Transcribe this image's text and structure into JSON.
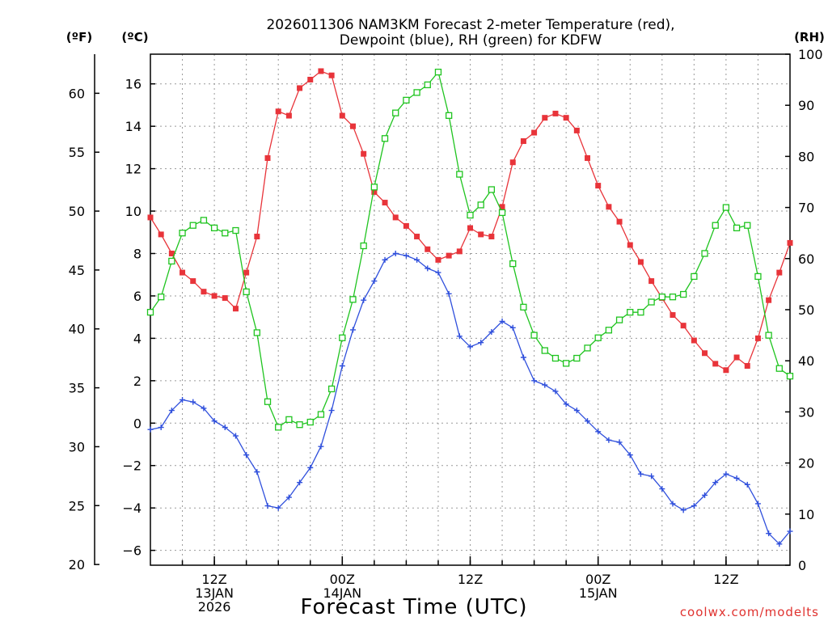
{
  "chart_data": {
    "type": "line",
    "title_line1": "2026011306 NAM3KM Forecast 2-meter Temperature (red),",
    "title_line2": "Dewpoint (blue), RH (green) for KDFW",
    "xlabel": "Forecast Time (UTC)",
    "credit": "coolwx.com/modelts",
    "units": {
      "fahrenheit": "(ºF)",
      "celsius": "(ºC)",
      "rh": "(RH)"
    },
    "x_hours_range": [
      6,
      66
    ],
    "celsius_range": [
      -6.7,
      17.4
    ],
    "rh_range": [
      0,
      100
    ],
    "celsius_ticks": [
      -6,
      -4,
      -2,
      0,
      2,
      4,
      6,
      8,
      10,
      12,
      14,
      16
    ],
    "celsius_tick_labels": [
      "−6",
      "−4",
      "−2",
      "0",
      "2",
      "4",
      "6",
      "8",
      "10",
      "12",
      "14",
      "16"
    ],
    "fahrenheit_ticks": [
      20,
      25,
      30,
      35,
      40,
      45,
      50,
      55,
      60
    ],
    "fahrenheit_tick_labels": [
      "20",
      "25",
      "30",
      "35",
      "40",
      "45",
      "50",
      "55",
      "60"
    ],
    "rh_ticks": [
      0,
      10,
      20,
      30,
      40,
      50,
      60,
      70,
      80,
      90,
      100
    ],
    "rh_tick_labels": [
      "0",
      "10",
      "20",
      "30",
      "40",
      "50",
      "60",
      "70",
      "80",
      "90",
      "100"
    ],
    "x_ticks": [
      {
        "hour": 12,
        "lines": [
          "12Z",
          "13JAN",
          "2026"
        ]
      },
      {
        "hour": 24,
        "lines": [
          "00Z",
          "14JAN"
        ]
      },
      {
        "hour": 36,
        "lines": [
          "12Z"
        ]
      },
      {
        "hour": 48,
        "lines": [
          "00Z",
          "15JAN"
        ]
      },
      {
        "hour": 60,
        "lines": [
          "12Z"
        ]
      }
    ],
    "series": [
      {
        "name": "2-meter Temperature",
        "color": "#e8343a",
        "marker": "filled-square",
        "axis": "celsius",
        "values": [
          9.7,
          8.9,
          8.0,
          7.1,
          6.7,
          6.2,
          6.0,
          5.9,
          5.4,
          7.1,
          8.8,
          12.5,
          14.7,
          14.5,
          15.8,
          16.2,
          16.6,
          16.4,
          14.5,
          14.0,
          12.7,
          10.9,
          10.4,
          9.7,
          9.3,
          8.8,
          8.2,
          7.7,
          7.9,
          8.1,
          9.2,
          8.9,
          8.8,
          10.2,
          12.3,
          13.3,
          13.7,
          14.4,
          14.6,
          14.4,
          13.8,
          12.5,
          11.2,
          10.2,
          9.5,
          8.4,
          7.6,
          6.7,
          5.9,
          5.1,
          4.6,
          3.9,
          3.3,
          2.8,
          2.5,
          3.1,
          2.7,
          4.0,
          5.8,
          7.1,
          8.5
        ]
      },
      {
        "name": "Dewpoint",
        "color": "#2f4fdc",
        "marker": "plus",
        "axis": "celsius",
        "values": [
          -0.3,
          -0.2,
          0.6,
          1.1,
          1.0,
          0.7,
          0.1,
          -0.2,
          -0.6,
          -1.5,
          -2.3,
          -3.9,
          -4.0,
          -3.5,
          -2.8,
          -2.1,
          -1.1,
          0.6,
          2.7,
          4.4,
          5.8,
          6.7,
          7.7,
          8.0,
          7.9,
          7.7,
          7.3,
          7.1,
          6.1,
          4.1,
          3.6,
          3.8,
          4.3,
          4.8,
          4.5,
          3.1,
          2.0,
          1.8,
          1.5,
          0.9,
          0.6,
          0.1,
          -0.4,
          -0.8,
          -0.9,
          -1.5,
          -2.4,
          -2.5,
          -3.1,
          -3.8,
          -4.1,
          -3.9,
          -3.4,
          -2.8,
          -2.4,
          -2.6,
          -2.9,
          -3.8,
          -5.2,
          -5.7,
          -5.1
        ]
      },
      {
        "name": "RH",
        "color": "#1fc41f",
        "marker": "open-square",
        "axis": "rh",
        "values": [
          49.5,
          52.5,
          59.5,
          65.0,
          66.5,
          67.5,
          66.0,
          65.0,
          65.5,
          53.5,
          45.5,
          32.0,
          27.0,
          28.5,
          27.5,
          28.0,
          29.5,
          34.5,
          44.5,
          52.0,
          62.5,
          74.0,
          83.5,
          88.5,
          91.0,
          92.5,
          94.0,
          96.5,
          88.0,
          76.5,
          68.5,
          70.5,
          73.5,
          69.0,
          59.0,
          50.5,
          45.0,
          42.0,
          40.5,
          39.5,
          40.5,
          42.5,
          44.5,
          46.0,
          48.0,
          49.5,
          49.5,
          51.5,
          52.5,
          52.5,
          53.0,
          56.5,
          61.0,
          66.5,
          70.0,
          66.0,
          66.5,
          56.5,
          45.0,
          38.5,
          37.0
        ]
      }
    ]
  }
}
